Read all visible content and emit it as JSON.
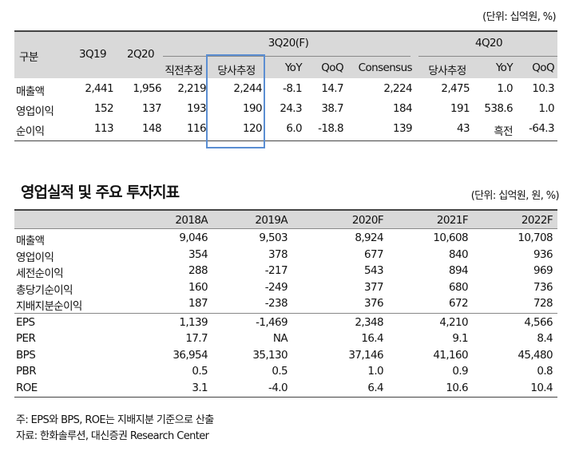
{
  "unit_top": "(단위: 십억원, %)",
  "table1": {
    "head_label": "구분",
    "col_3q19": "3Q19",
    "col_2q20": "2Q20",
    "group_3q20": "3Q20(F)",
    "group_4q20": "4Q20",
    "sub_3q20": [
      "직전추정",
      "당사추정",
      "YoY",
      "QoQ",
      "Consensus"
    ],
    "sub_4q20": [
      "당사추정",
      "YoY",
      "QoQ"
    ],
    "rows": [
      {
        "label": "매출액",
        "v": [
          "2,441",
          "1,956",
          "2,219",
          "2,244",
          "-8.1",
          "14.7",
          "2,224",
          "2,475",
          "1.0",
          "10.3"
        ]
      },
      {
        "label": "영업이익",
        "v": [
          "152",
          "137",
          "193",
          "190",
          "24.3",
          "38.7",
          "184",
          "191",
          "538.6",
          "1.0"
        ]
      },
      {
        "label": "순이익",
        "v": [
          "113",
          "148",
          "116",
          "120",
          "6.0",
          "-18.8",
          "139",
          "43",
          "흑전",
          "-64.3"
        ]
      }
    ]
  },
  "section_title": "영업실적 및 주요 투자지표",
  "unit_bottom": "(단위: 십억원, 원, %)",
  "table2": {
    "years": [
      "2018A",
      "2019A",
      "2020F",
      "2021F",
      "2022F"
    ],
    "group1": [
      {
        "label": "매출액",
        "v": [
          "9,046",
          "9,503",
          "8,924",
          "10,608",
          "10,708"
        ]
      },
      {
        "label": "영업이익",
        "v": [
          "354",
          "378",
          "677",
          "840",
          "936"
        ]
      },
      {
        "label": "세전순이익",
        "v": [
          "288",
          "-217",
          "543",
          "894",
          "969"
        ]
      },
      {
        "label": "총당기순이익",
        "v": [
          "160",
          "-249",
          "377",
          "680",
          "736"
        ]
      },
      {
        "label": "지배지분순이익",
        "v": [
          "187",
          "-238",
          "376",
          "672",
          "728"
        ]
      }
    ],
    "group2": [
      {
        "label": "EPS",
        "v": [
          "1,139",
          "-1,469",
          "2,348",
          "4,210",
          "4,566"
        ]
      },
      {
        "label": "PER",
        "v": [
          "17.7",
          "NA",
          "16.4",
          "9.1",
          "8.4"
        ]
      },
      {
        "label": "BPS",
        "v": [
          "36,954",
          "35,130",
          "37,146",
          "41,160",
          "45,480"
        ]
      },
      {
        "label": "PBR",
        "v": [
          "0.5",
          "0.5",
          "1.0",
          "0.9",
          "0.8"
        ]
      },
      {
        "label": "ROE",
        "v": [
          "3.1",
          "-4.0",
          "6.4",
          "10.6",
          "10.4"
        ]
      }
    ]
  },
  "notes": [
    "주: EPS와 BPS, ROE는 지배지분 기준으로 산출",
    "자료: 한화솔루션, 대신증권 Research Center"
  ]
}
